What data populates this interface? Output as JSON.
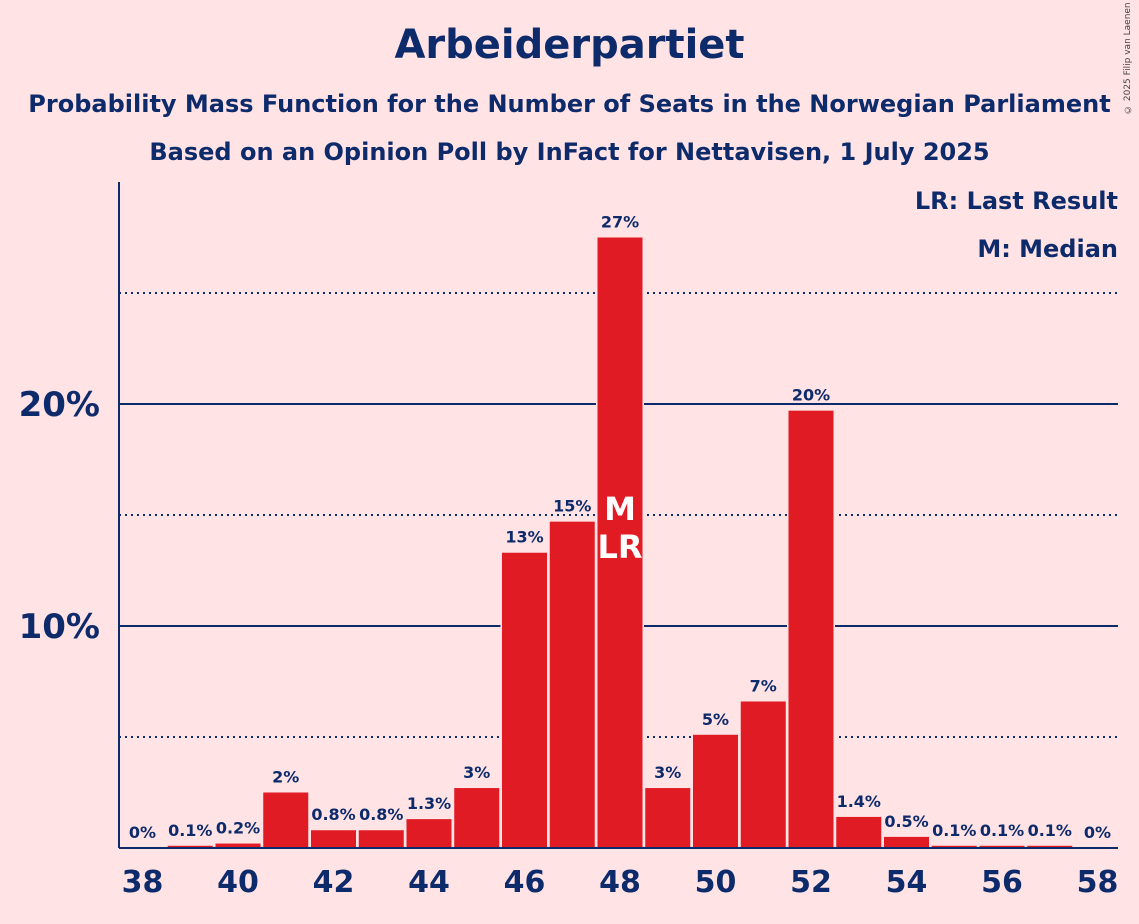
{
  "chart_data": {
    "type": "bar",
    "title": "Arbeiderpartiet",
    "subtitle": "Probability Mass Function for the Number of Seats in the Norwegian Parliament",
    "subtitle2": "Based on an Opinion Poll by InFact for Nettavisen, 1 July 2025",
    "copyright": "© 2025 Filip van Laenen",
    "categories": [
      38,
      39,
      40,
      41,
      42,
      43,
      44,
      45,
      46,
      47,
      48,
      49,
      50,
      51,
      52,
      53,
      54,
      55,
      56,
      57,
      58
    ],
    "values": [
      0,
      0.1,
      0.2,
      2.5,
      0.8,
      0.8,
      1.3,
      2.7,
      13.3,
      14.7,
      27.5,
      2.7,
      5.1,
      6.6,
      19.7,
      1.4,
      0.5,
      0.1,
      0.1,
      0.1,
      0
    ],
    "value_labels": [
      "0%",
      "0.1%",
      "0.2%",
      "2%",
      "0.8%",
      "0.8%",
      "1.3%",
      "3%",
      "13%",
      "15%",
      "27%",
      "3%",
      "5%",
      "7%",
      "20%",
      "1.4%",
      "0.5%",
      "0.1%",
      "0.1%",
      "0.1%",
      "0%"
    ],
    "x_tick_labels": [
      "38",
      "40",
      "42",
      "44",
      "46",
      "48",
      "50",
      "52",
      "54",
      "56",
      "58"
    ],
    "y_ticks": [
      10,
      20
    ],
    "y_tick_labels": [
      "10%",
      "20%"
    ],
    "y_minor_ticks": [
      5,
      15,
      25
    ],
    "ylim": [
      0,
      30
    ],
    "median_seat": 48,
    "last_result_seat": 48,
    "median_marker": "M",
    "last_result_marker": "LR",
    "legend": [
      "LR: Last Result",
      "M: Median"
    ],
    "legend_position": "top-right",
    "colors": {
      "bar": "#e01b24",
      "text": "#0d2a6b",
      "background": "#ffe3e5"
    }
  }
}
